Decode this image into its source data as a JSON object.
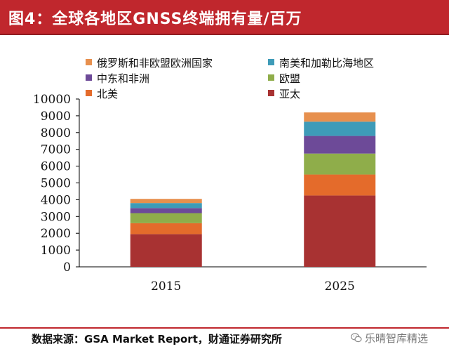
{
  "header": {
    "title": "图4：全球各地区GNSS终端拥有量/百万"
  },
  "footer": {
    "source": "数据来源：GSA Market Report，财通证券研究所",
    "watermark": "乐晴智库精选"
  },
  "chart_data": {
    "type": "bar",
    "stacked": true,
    "title": "全球各地区GNSS终端拥有量/百万",
    "xlabel": "",
    "ylabel": "",
    "ylim": [
      0,
      10000
    ],
    "yticks": [
      0,
      1000,
      2000,
      3000,
      4000,
      5000,
      6000,
      7000,
      8000,
      9000,
      10000
    ],
    "categories": [
      "2015",
      "2025"
    ],
    "series": [
      {
        "name": "亚太",
        "color": "#a83232",
        "values": [
          1950,
          4250
        ]
      },
      {
        "name": "北美",
        "color": "#e46b2b",
        "values": [
          650,
          1250
        ]
      },
      {
        "name": "欧盟",
        "color": "#8fad4a",
        "values": [
          600,
          1250
        ]
      },
      {
        "name": "中东和非洲",
        "color": "#6d4a98",
        "values": [
          300,
          1050
        ]
      },
      {
        "name": "南美和加勒比海地区",
        "color": "#3e9bb8",
        "values": [
          300,
          850
        ]
      },
      {
        "name": "俄罗斯和非欧盟欧洲国家",
        "color": "#e7904e",
        "values": [
          250,
          550
        ]
      }
    ],
    "legend": {
      "placement": "top",
      "order": [
        "俄罗斯和非欧盟欧洲国家",
        "南美和加勒比海地区",
        "中东和非洲",
        "欧盟",
        "北美",
        "亚太"
      ]
    }
  }
}
